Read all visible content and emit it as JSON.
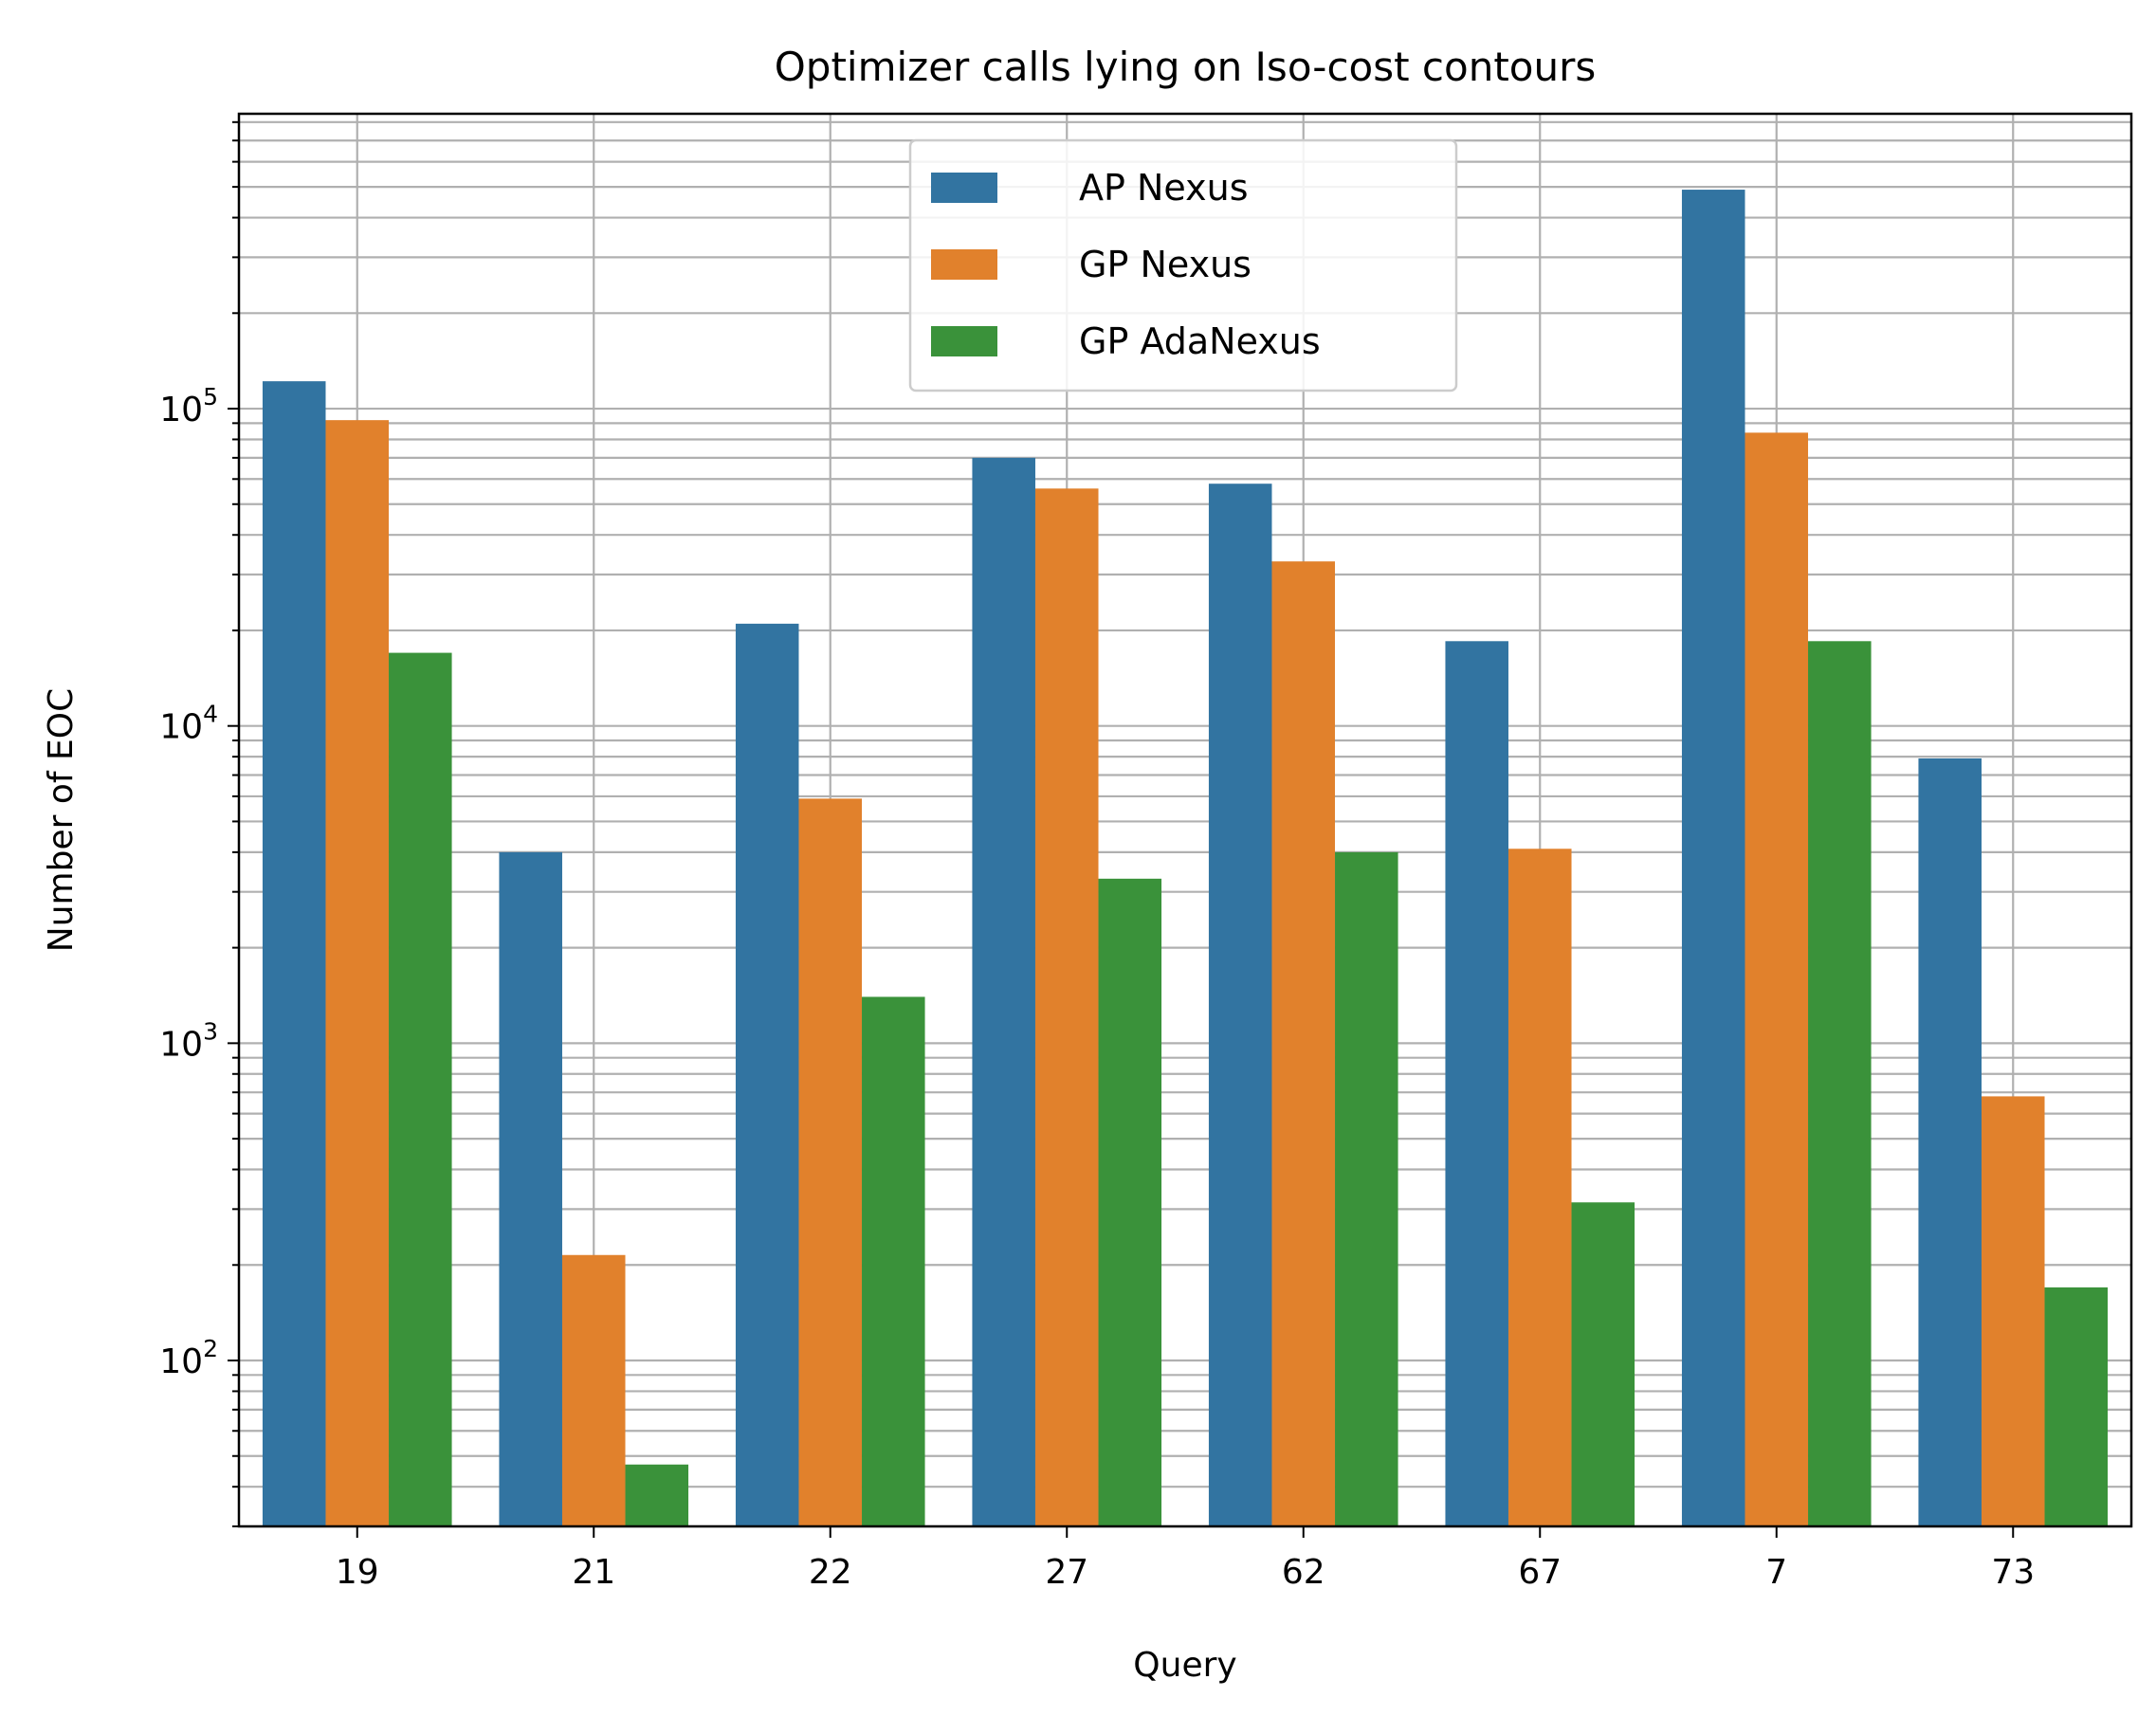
{
  "chart_data": {
    "type": "bar",
    "title": "Optimizer calls lying on Iso-cost contours",
    "xlabel": "Query",
    "ylabel": "Number of EOC",
    "yscale": "log",
    "ylim": [
      30,
      850000
    ],
    "y_ticks": [
      {
        "value": 100,
        "base": "10",
        "exp": "2"
      },
      {
        "value": 1000,
        "base": "10",
        "exp": "3"
      },
      {
        "value": 10000,
        "base": "10",
        "exp": "4"
      },
      {
        "value": 100000,
        "base": "10",
        "exp": "5"
      }
    ],
    "grid": true,
    "legend": "upper-center",
    "categories": [
      "19",
      "21",
      "22",
      "27",
      "62",
      "67",
      "7",
      "73"
    ],
    "series": [
      {
        "name": "AP Nexus",
        "color": "#3274a1",
        "values": [
          122000,
          4000,
          21000,
          70000,
          58000,
          18500,
          490000,
          7900
        ]
      },
      {
        "name": "GP Nexus",
        "color": "#e1812c",
        "values": [
          92000,
          215,
          5900,
          56000,
          33000,
          4100,
          84000,
          680
        ]
      },
      {
        "name": "GP AdaNexus",
        "color": "#3a923a",
        "values": [
          17000,
          47,
          1400,
          3300,
          4000,
          315,
          18500,
          170
        ]
      }
    ]
  }
}
